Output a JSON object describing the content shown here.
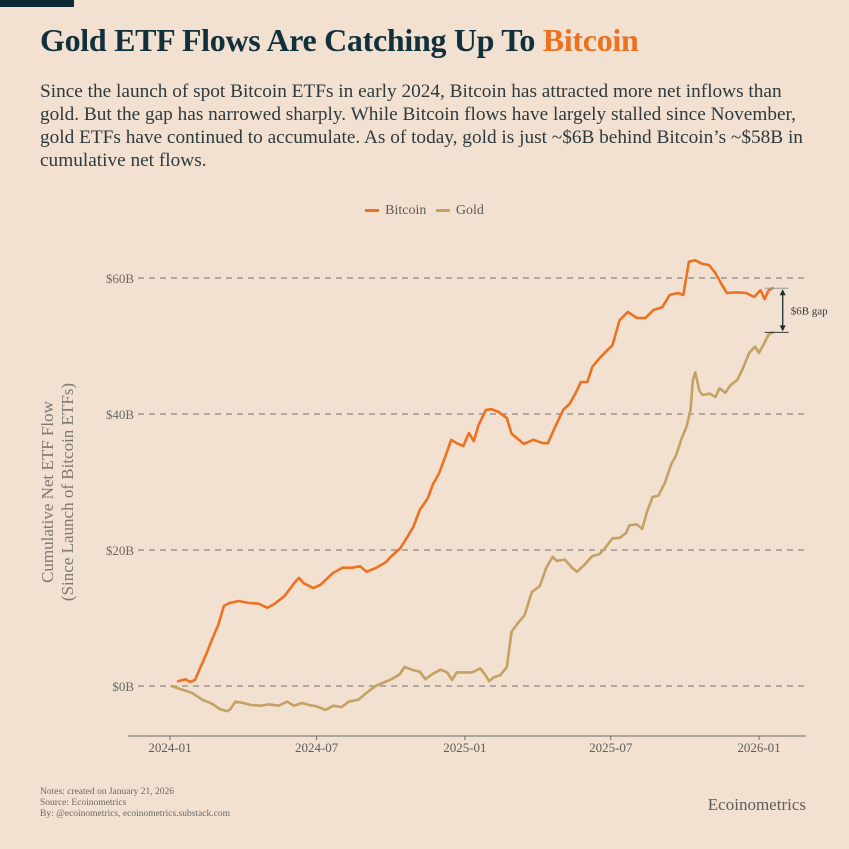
{
  "header": {
    "title_main": "Gold ETF Flows Are Catching Up To ",
    "title_accent": "Bitcoin",
    "subtitle": "Since the launch of spot Bitcoin ETFs in early 2024, Bitcoin has attracted more net inflows than gold. But the gap has narrowed sharply. While Bitcoin flows have largely stalled since November, gold ETFs have continued to accumulate. As of today, gold is just ~$6B behind Bitcoin’s ~$58B in cumulative net flows."
  },
  "colors": {
    "background": "#f2e0d0",
    "bitcoin": "#ec7120",
    "gold": "#c4a264",
    "title": "#10303c",
    "grid": "#5e5e5a"
  },
  "footer": {
    "notes": [
      "Notes: created on January 21, 2026",
      "Source: Ecoinometrics",
      "By: @ecoinometrics, ecoinometrics.substack.com"
    ],
    "brand": "Ecoinometrics"
  },
  "chart_data": {
    "type": "line",
    "title": "Gold ETF Flows Are Catching Up To Bitcoin",
    "xlabel": "",
    "ylabel": "Cumulative Net ETF Flow\n(Since Launch of Bitcoin ETFs)",
    "ylabel_lines": [
      "Cumulative Net ETF Flow",
      "(Since Launch of Bitcoin ETFs)"
    ],
    "x_ticks": [
      "2024-01",
      "2024-07",
      "2025-01",
      "2025-07",
      "2026-01"
    ],
    "y_ticks": [
      0,
      20,
      40,
      60
    ],
    "y_tick_labels": [
      "$0B",
      "$20B",
      "$40B",
      "$60B"
    ],
    "xlim": [
      "2023-12-25",
      "2026-02-10"
    ],
    "ylim": [
      -7,
      68
    ],
    "grid": "horizontal-dashed",
    "legend": {
      "placement": "top-center",
      "entries": [
        "Bitcoin",
        "Gold"
      ]
    },
    "annotation": {
      "text": "$6B gap",
      "from_value": 52,
      "to_value": 58.5,
      "date": "2026-01-18"
    },
    "unit": "USD billions",
    "series": [
      {
        "name": "Bitcoin",
        "points": [
          [
            "2024-01-11",
            0.7
          ],
          [
            "2024-01-20",
            1.0
          ],
          [
            "2024-01-26",
            0.6
          ],
          [
            "2024-02-01",
            0.9
          ],
          [
            "2024-02-08",
            2.8
          ],
          [
            "2024-02-15",
            4.7
          ],
          [
            "2024-02-22",
            6.8
          ],
          [
            "2024-03-01",
            9.0
          ],
          [
            "2024-03-08",
            11.8
          ],
          [
            "2024-03-15",
            12.2
          ],
          [
            "2024-03-26",
            12.5
          ],
          [
            "2024-04-08",
            12.2
          ],
          [
            "2024-04-20",
            12.1
          ],
          [
            "2024-05-01",
            11.5
          ],
          [
            "2024-05-10",
            12.1
          ],
          [
            "2024-05-22",
            13.2
          ],
          [
            "2024-06-03",
            15.1
          ],
          [
            "2024-06-09",
            15.9
          ],
          [
            "2024-06-15",
            15.1
          ],
          [
            "2024-06-27",
            14.4
          ],
          [
            "2024-07-06",
            14.9
          ],
          [
            "2024-07-21",
            16.6
          ],
          [
            "2024-08-02",
            17.4
          ],
          [
            "2024-08-14",
            17.4
          ],
          [
            "2024-08-24",
            17.6
          ],
          [
            "2024-09-01",
            16.8
          ],
          [
            "2024-09-13",
            17.4
          ],
          [
            "2024-09-25",
            18.2
          ],
          [
            "2024-10-01",
            19.0
          ],
          [
            "2024-10-13",
            20.3
          ],
          [
            "2024-10-23",
            22.2
          ],
          [
            "2024-10-29",
            23.4
          ],
          [
            "2024-11-06",
            25.9
          ],
          [
            "2024-11-16",
            27.6
          ],
          [
            "2024-11-22",
            29.6
          ],
          [
            "2024-11-30",
            31.3
          ],
          [
            "2024-12-06",
            33.2
          ],
          [
            "2024-12-15",
            36.2
          ],
          [
            "2024-12-22",
            35.7
          ],
          [
            "2024-12-30",
            35.3
          ],
          [
            "2025-01-06",
            37.2
          ],
          [
            "2025-01-12",
            36.0
          ],
          [
            "2025-01-18",
            38.4
          ],
          [
            "2025-01-27",
            40.6
          ],
          [
            "2025-02-03",
            40.7
          ],
          [
            "2025-02-12",
            40.3
          ],
          [
            "2025-02-22",
            39.4
          ],
          [
            "2025-02-28",
            37.1
          ],
          [
            "2025-03-09",
            36.2
          ],
          [
            "2025-03-15",
            35.6
          ],
          [
            "2025-03-27",
            36.2
          ],
          [
            "2025-04-08",
            35.7
          ],
          [
            "2025-04-14",
            35.7
          ],
          [
            "2025-04-23",
            38.1
          ],
          [
            "2025-05-03",
            40.6
          ],
          [
            "2025-05-11",
            41.5
          ],
          [
            "2025-05-19",
            43.2
          ],
          [
            "2025-05-25",
            44.7
          ],
          [
            "2025-06-02",
            44.7
          ],
          [
            "2025-06-08",
            46.9
          ],
          [
            "2025-06-17",
            48.2
          ],
          [
            "2025-06-27",
            49.4
          ],
          [
            "2025-07-03",
            50.1
          ],
          [
            "2025-07-12",
            53.8
          ],
          [
            "2025-07-22",
            55.0
          ],
          [
            "2025-08-03",
            54.1
          ],
          [
            "2025-08-13",
            54.1
          ],
          [
            "2025-08-23",
            55.3
          ],
          [
            "2025-09-03",
            55.7
          ],
          [
            "2025-09-12",
            57.5
          ],
          [
            "2025-09-22",
            57.8
          ],
          [
            "2025-09-29",
            57.5
          ],
          [
            "2025-10-06",
            62.4
          ],
          [
            "2025-10-14",
            62.6
          ],
          [
            "2025-10-22",
            62.1
          ],
          [
            "2025-10-31",
            61.9
          ],
          [
            "2025-11-08",
            60.7
          ],
          [
            "2025-11-16",
            59.0
          ],
          [
            "2025-11-22",
            57.8
          ],
          [
            "2025-12-04",
            57.9
          ],
          [
            "2025-12-16",
            57.8
          ],
          [
            "2025-12-26",
            57.2
          ],
          [
            "2026-01-03",
            58.2
          ],
          [
            "2026-01-08",
            56.9
          ],
          [
            "2026-01-13",
            58.2
          ],
          [
            "2026-01-18",
            58.5
          ]
        ]
      },
      {
        "name": "Gold",
        "points": [
          [
            "2024-01-03",
            0.0
          ],
          [
            "2024-01-15",
            -0.5
          ],
          [
            "2024-01-28",
            -1.0
          ],
          [
            "2024-02-10",
            -2.0
          ],
          [
            "2024-02-22",
            -2.6
          ],
          [
            "2024-03-03",
            -3.4
          ],
          [
            "2024-03-12",
            -3.7
          ],
          [
            "2024-03-16",
            -3.4
          ],
          [
            "2024-03-22",
            -2.3
          ],
          [
            "2024-04-01",
            -2.5
          ],
          [
            "2024-04-10",
            -2.8
          ],
          [
            "2024-04-22",
            -2.9
          ],
          [
            "2024-05-03",
            -2.7
          ],
          [
            "2024-05-15",
            -2.9
          ],
          [
            "2024-05-25",
            -2.3
          ],
          [
            "2024-06-03",
            -2.9
          ],
          [
            "2024-06-13",
            -2.5
          ],
          [
            "2024-06-22",
            -2.8
          ],
          [
            "2024-07-01",
            -3.0
          ],
          [
            "2024-07-12",
            -3.5
          ],
          [
            "2024-07-22",
            -2.9
          ],
          [
            "2024-08-01",
            -3.1
          ],
          [
            "2024-08-10",
            -2.3
          ],
          [
            "2024-08-22",
            -2.0
          ],
          [
            "2024-09-01",
            -1.0
          ],
          [
            "2024-09-12",
            0.0
          ],
          [
            "2024-09-22",
            0.5
          ],
          [
            "2024-10-02",
            1.0
          ],
          [
            "2024-10-12",
            1.7
          ],
          [
            "2024-10-18",
            2.8
          ],
          [
            "2024-10-27",
            2.4
          ],
          [
            "2024-11-06",
            2.1
          ],
          [
            "2024-11-13",
            1.0
          ],
          [
            "2024-11-22",
            1.8
          ],
          [
            "2024-12-02",
            2.4
          ],
          [
            "2024-12-10",
            2.0
          ],
          [
            "2024-12-16",
            0.9
          ],
          [
            "2024-12-22",
            2.0
          ],
          [
            "2025-01-01",
            2.0
          ],
          [
            "2025-01-10",
            2.0
          ],
          [
            "2025-01-20",
            2.6
          ],
          [
            "2025-01-26",
            1.7
          ],
          [
            "2025-01-31",
            0.7
          ],
          [
            "2025-02-06",
            1.3
          ],
          [
            "2025-02-14",
            1.6
          ],
          [
            "2025-02-22",
            2.8
          ],
          [
            "2025-02-28",
            8.0
          ],
          [
            "2025-03-08",
            9.3
          ],
          [
            "2025-03-16",
            10.4
          ],
          [
            "2025-03-25",
            13.8
          ],
          [
            "2025-04-04",
            14.7
          ],
          [
            "2025-04-12",
            17.4
          ],
          [
            "2025-04-20",
            19.0
          ],
          [
            "2025-04-25",
            18.4
          ],
          [
            "2025-05-05",
            18.6
          ],
          [
            "2025-05-14",
            17.4
          ],
          [
            "2025-05-20",
            16.8
          ],
          [
            "2025-05-29",
            17.8
          ],
          [
            "2025-06-08",
            19.1
          ],
          [
            "2025-06-17",
            19.4
          ],
          [
            "2025-06-24",
            20.3
          ],
          [
            "2025-07-03",
            21.7
          ],
          [
            "2025-07-12",
            21.8
          ],
          [
            "2025-07-20",
            22.5
          ],
          [
            "2025-07-24",
            23.6
          ],
          [
            "2025-08-02",
            23.8
          ],
          [
            "2025-08-09",
            23.1
          ],
          [
            "2025-08-15",
            25.6
          ],
          [
            "2025-08-22",
            27.8
          ],
          [
            "2025-08-29",
            28.0
          ],
          [
            "2025-09-06",
            29.8
          ],
          [
            "2025-09-14",
            32.6
          ],
          [
            "2025-09-20",
            33.9
          ],
          [
            "2025-09-27",
            36.4
          ],
          [
            "2025-10-03",
            38.1
          ],
          [
            "2025-10-08",
            40.6
          ],
          [
            "2025-10-11",
            45.0
          ],
          [
            "2025-10-14",
            46.1
          ],
          [
            "2025-10-19",
            43.4
          ],
          [
            "2025-10-23",
            42.8
          ],
          [
            "2025-11-01",
            43.0
          ],
          [
            "2025-11-08",
            42.5
          ],
          [
            "2025-11-13",
            43.8
          ],
          [
            "2025-11-20",
            43.1
          ],
          [
            "2025-11-27",
            44.3
          ],
          [
            "2025-12-05",
            45.0
          ],
          [
            "2025-12-12",
            46.7
          ],
          [
            "2025-12-20",
            49.0
          ],
          [
            "2025-12-27",
            49.9
          ],
          [
            "2026-01-01",
            49.0
          ],
          [
            "2026-01-07",
            50.3
          ],
          [
            "2026-01-13",
            51.7
          ],
          [
            "2026-01-18",
            52.0
          ]
        ]
      }
    ]
  }
}
